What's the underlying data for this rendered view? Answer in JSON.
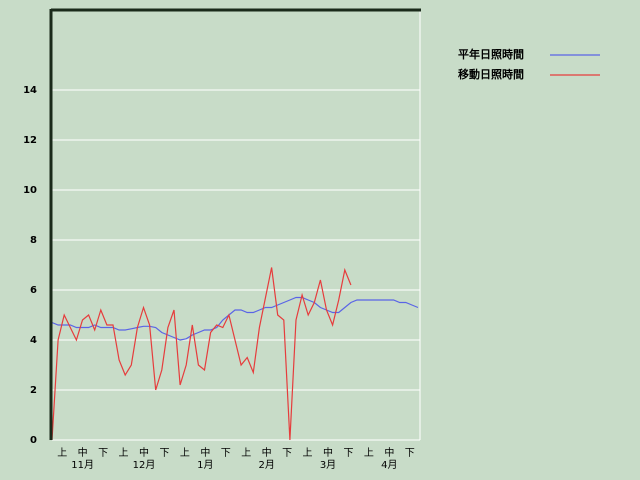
{
  "chart_data": {
    "type": "line",
    "x": [
      0,
      3,
      6,
      9,
      12,
      15,
      18,
      21,
      24,
      27,
      30,
      33,
      36,
      39,
      42,
      45,
      48,
      51,
      54,
      57,
      60,
      63,
      66,
      69,
      72,
      75,
      78,
      81,
      84,
      87,
      90,
      93,
      96,
      99,
      102,
      105,
      108,
      111,
      114,
      117,
      120,
      123,
      126,
      129,
      132,
      135,
      138,
      141,
      144,
      147,
      150,
      153,
      156,
      159,
      162,
      165,
      168,
      171,
      174,
      177,
      180
    ],
    "xlim": [
      0,
      181
    ],
    "ylim": [
      0,
      17.2
    ],
    "yticks": [
      0,
      2,
      4,
      6,
      8,
      10,
      12,
      14
    ],
    "grid": true,
    "legend": "right",
    "x_tick_labels": [
      "上",
      "中",
      "下",
      "上",
      "中",
      "下",
      "上",
      "中",
      "下",
      "上",
      "中",
      "下",
      "上",
      "中",
      "下",
      "上",
      "中",
      "下"
    ],
    "month_labels": [
      "11月",
      "12月",
      "1月",
      "2月",
      "3月",
      "4月"
    ],
    "series": [
      {
        "name": "平年日照時間",
        "color": "#5a64e6",
        "values": [
          4.7,
          4.6,
          4.6,
          4.6,
          4.5,
          4.5,
          4.5,
          4.6,
          4.5,
          4.5,
          4.5,
          4.4,
          4.4,
          4.45,
          4.5,
          4.55,
          4.55,
          4.5,
          4.3,
          4.2,
          4.1,
          4.0,
          4.05,
          4.2,
          4.3,
          4.4,
          4.4,
          4.5,
          4.8,
          5.0,
          5.2,
          5.2,
          5.1,
          5.1,
          5.2,
          5.3,
          5.3,
          5.4,
          5.5,
          5.6,
          5.7,
          5.7,
          5.6,
          5.5,
          5.3,
          5.2,
          5.1,
          5.1,
          5.3,
          5.5,
          5.6,
          5.6,
          5.6,
          5.6,
          5.6,
          5.6,
          5.6,
          5.5,
          5.5,
          5.4,
          5.3
        ]
      },
      {
        "name": "移動日照時間",
        "color": "#e63c3c",
        "values": [
          0,
          4.0,
          5.0,
          4.5,
          4.0,
          4.8,
          5.0,
          4.4,
          5.2,
          4.6,
          4.6,
          3.2,
          2.6,
          3.0,
          4.5,
          5.3,
          4.6,
          2.0,
          2.8,
          4.5,
          5.2,
          2.2,
          3.0,
          4.6,
          3.0,
          2.8,
          4.3,
          4.6,
          4.5,
          5.0,
          4.0,
          3.0,
          3.3,
          2.7,
          4.5,
          5.7,
          6.9,
          5.0,
          4.8,
          0,
          4.8,
          5.8,
          5.0,
          5.5,
          6.4,
          5.2,
          4.6,
          5.6,
          6.8,
          6.2,
          null,
          null,
          null,
          null,
          null,
          null,
          null,
          null,
          null,
          null,
          null
        ]
      }
    ]
  }
}
